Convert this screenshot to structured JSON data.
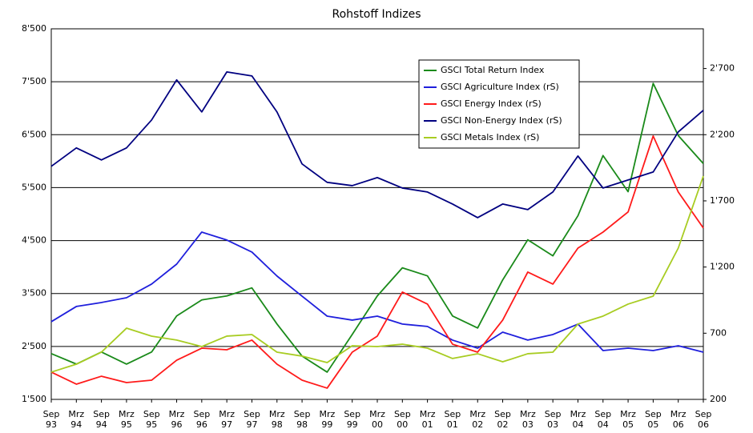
{
  "chart_data": {
    "type": "line",
    "title": "Rohstoff Indizes",
    "categories": [
      [
        "Sep",
        "93"
      ],
      [
        "Mrz",
        "94"
      ],
      [
        "Sep",
        "94"
      ],
      [
        "Mrz",
        "95"
      ],
      [
        "Sep",
        "95"
      ],
      [
        "Mrz",
        "96"
      ],
      [
        "Sep",
        "96"
      ],
      [
        "Mrz",
        "97"
      ],
      [
        "Sep",
        "97"
      ],
      [
        "Mrz",
        "98"
      ],
      [
        "Sep",
        "98"
      ],
      [
        "Mrz",
        "99"
      ],
      [
        "Sep",
        "99"
      ],
      [
        "Mrz",
        "00"
      ],
      [
        "Sep",
        "00"
      ],
      [
        "Mrz",
        "01"
      ],
      [
        "Sep",
        "01"
      ],
      [
        "Mrz",
        "02"
      ],
      [
        "Sep",
        "02"
      ],
      [
        "Mrz",
        "03"
      ],
      [
        "Sep",
        "03"
      ],
      [
        "Mrz",
        "04"
      ],
      [
        "Sep",
        "04"
      ],
      [
        "Mrz",
        "05"
      ],
      [
        "Sep",
        "05"
      ],
      [
        "Mrz",
        "06"
      ],
      [
        "Sep",
        "06"
      ]
    ],
    "series": [
      {
        "name": "GSCI Total Return Index",
        "color": "#1a8a1a",
        "values": [
          2364,
          2167,
          2394,
          2167,
          2394,
          3076,
          3379,
          3454,
          3606,
          2924,
          2318,
          2015,
          2727,
          3454,
          3985,
          3833,
          3076,
          2848,
          3757,
          4515,
          4212,
          4969,
          6106,
          5424,
          7469,
          6484,
          5954
        ]
      },
      {
        "name": "GSCI Agriculture Index (rS)",
        "color": "#1f1fdc",
        "axis": "y2",
        "values": [
          787,
          902,
          932,
          968,
          1071,
          1222,
          1464,
          1404,
          1313,
          1132,
          980,
          829,
          799,
          829,
          769,
          751,
          648,
          587,
          708,
          648,
          690,
          769,
          569,
          587,
          569,
          605,
          557
        ]
      },
      {
        "name": "GSCI Energy Index (rS)",
        "color": "#ff1a1a",
        "axis": "y2",
        "values": [
          406,
          315,
          375,
          327,
          345,
          496,
          587,
          575,
          648,
          466,
          345,
          285,
          557,
          678,
          1011,
          920,
          617,
          557,
          799,
          1162,
          1071,
          1343,
          1464,
          1616,
          2190,
          1767,
          1495
        ]
      },
      {
        "name": "GSCI Non-Energy Index (rS)",
        "color": "#000080",
        "axis": "y2",
        "values": [
          1961,
          2100,
          2009,
          2100,
          2311,
          2614,
          2372,
          2674,
          2644,
          2372,
          1979,
          1840,
          1815,
          1876,
          1797,
          1767,
          1676,
          1573,
          1676,
          1634,
          1767,
          2039,
          1797,
          1858,
          1918,
          2221,
          2384
        ]
      },
      {
        "name": "GSCI Metals Index (rS)",
        "color": "#a8cc22",
        "axis": "y2",
        "values": [
          406,
          466,
          557,
          738,
          678,
          648,
          599,
          678,
          690,
          557,
          527,
          478,
          605,
          599,
          617,
          587,
          509,
          545,
          484,
          545,
          557,
          769,
          829,
          920,
          980,
          1343,
          1888
        ]
      }
    ],
    "ylim": [
      1500,
      8500
    ],
    "yticks": [
      {
        "value": 1500,
        "label": "1'500"
      },
      {
        "value": 2500,
        "label": "2'500"
      },
      {
        "value": 3500,
        "label": "3'500"
      },
      {
        "value": 4500,
        "label": "4'500"
      },
      {
        "value": 5500,
        "label": "5'500"
      },
      {
        "value": 6500,
        "label": "6'500"
      },
      {
        "value": 7500,
        "label": "7'500"
      },
      {
        "value": 8500,
        "label": "8'500"
      }
    ],
    "y2lim": [
      200,
      3000
    ],
    "y2ticks": [
      200,
      700,
      {
        "value": 1200,
        "label": "1'200"
      },
      {
        "value": 1700,
        "label": "1'700"
      },
      {
        "value": 2200,
        "label": "2'200"
      },
      {
        "value": 2700,
        "label": "2'700"
      }
    ],
    "grid": true
  }
}
